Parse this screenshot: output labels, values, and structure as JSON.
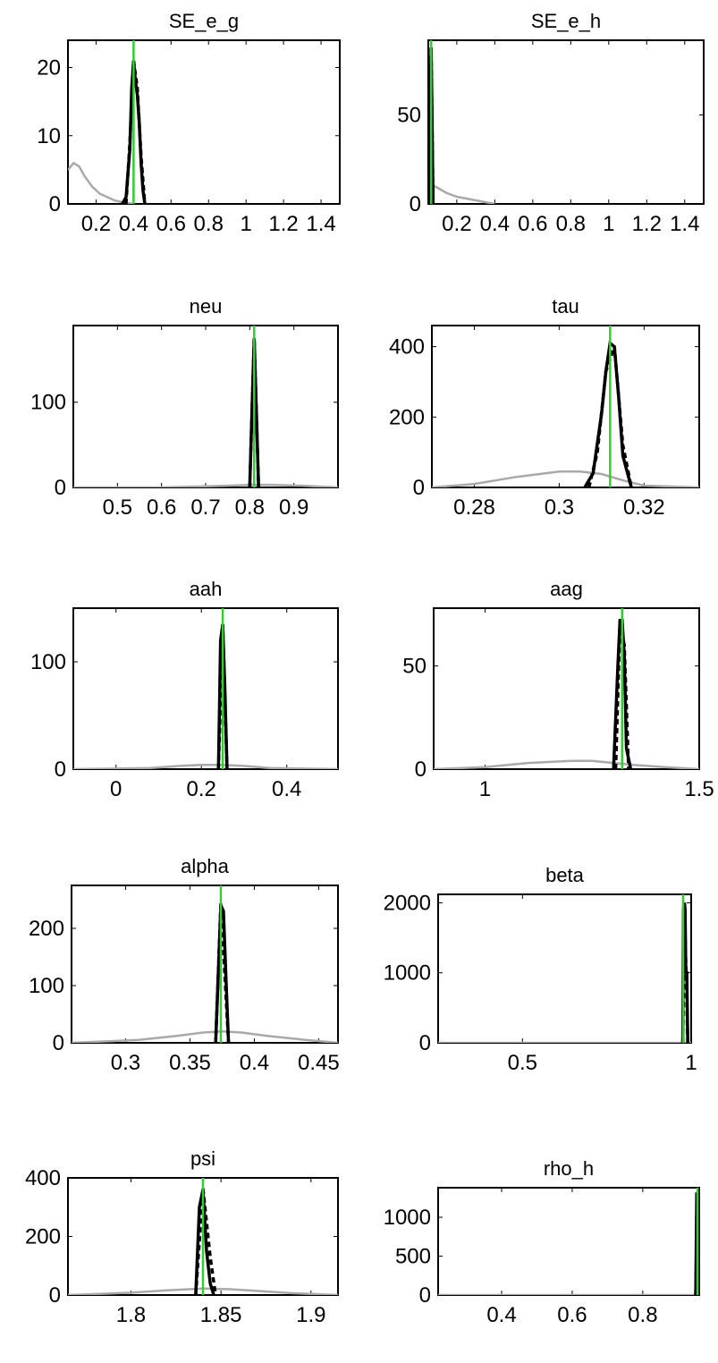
{
  "chart_data": [
    {
      "type": "line",
      "title": "SE_e_g",
      "xlim": [
        0.05,
        1.5
      ],
      "ylim": [
        0,
        24
      ],
      "xticks": [
        0.2,
        0.4,
        0.6,
        0.8,
        1,
        1.2,
        1.4
      ],
      "xtick_labels": [
        "0.2",
        "0.4",
        "0.6",
        "0.8",
        "1",
        "1.2",
        "1.4"
      ],
      "yticks": [
        0,
        10,
        20
      ],
      "ytick_labels": [
        "0",
        "10",
        "20"
      ],
      "prior": {
        "x": [
          0.05,
          0.08,
          0.11,
          0.14,
          0.18,
          0.22,
          0.26,
          0.3,
          0.35,
          0.4
        ],
        "y": [
          5,
          6,
          5.5,
          4,
          2.5,
          1.5,
          1,
          0.5,
          0.2,
          0
        ]
      },
      "posterior": {
        "x": [
          0.34,
          0.36,
          0.38,
          0.39,
          0.4,
          0.41,
          0.42,
          0.43,
          0.44,
          0.45,
          0.46
        ],
        "y": [
          0,
          1,
          8,
          17,
          21,
          18,
          16,
          12,
          6,
          2,
          0
        ]
      },
      "posterior_draws": {
        "x": [
          0.36,
          0.38,
          0.4,
          0.42,
          0.44,
          0.46
        ],
        "y": [
          0,
          9,
          21,
          17,
          7,
          0
        ]
      },
      "mode": 0.4,
      "mode_ylim": [
        0,
        24
      ]
    },
    {
      "type": "line",
      "title": "SE_e_h",
      "xlim": [
        0.05,
        1.5
      ],
      "ylim": [
        0,
        92
      ],
      "xticks": [
        0.2,
        0.4,
        0.6,
        0.8,
        1,
        1.2,
        1.4
      ],
      "xtick_labels": [
        "0.2",
        "0.4",
        "0.6",
        "0.8",
        "1",
        "1.2",
        "1.4"
      ],
      "yticks": [
        0,
        50
      ],
      "ytick_labels": [
        "0",
        "50"
      ],
      "prior": {
        "x": [
          0.05,
          0.1,
          0.15,
          0.2,
          0.25,
          0.3,
          0.35,
          0.4
        ],
        "y": [
          12,
          9,
          6,
          4,
          3,
          2,
          1,
          0
        ]
      },
      "posterior": {
        "x": [
          0.055,
          0.06,
          0.065,
          0.07,
          0.075
        ],
        "y": [
          0,
          60,
          88,
          50,
          0
        ]
      },
      "posterior_draws": {
        "x": [
          0.055,
          0.065,
          0.075
        ],
        "y": [
          0,
          88,
          0
        ]
      },
      "mode": 0.065,
      "mode_ylim": [
        0,
        92
      ]
    },
    {
      "type": "line",
      "title": "neu",
      "xlim": [
        0.4,
        1.0
      ],
      "ylim": [
        0,
        190
      ],
      "xticks": [
        0.5,
        0.6,
        0.7,
        0.8,
        0.9
      ],
      "xtick_labels": [
        "0.5",
        "0.6",
        "0.7",
        "0.8",
        "0.9"
      ],
      "yticks": [
        0,
        100
      ],
      "ytick_labels": [
        "0",
        "100"
      ],
      "prior": {
        "x": [
          0.4,
          0.6,
          0.75,
          0.8,
          0.85,
          0.92,
          1.0
        ],
        "y": [
          0,
          0,
          2,
          3,
          3,
          2,
          0
        ]
      },
      "posterior": {
        "x": [
          0.8,
          0.805,
          0.81,
          0.815,
          0.82
        ],
        "y": [
          0,
          90,
          175,
          90,
          0
        ]
      },
      "posterior_draws": {
        "x": [
          0.8,
          0.81,
          0.82
        ],
        "y": [
          0,
          175,
          0
        ]
      },
      "mode": 0.81,
      "mode_ylim": [
        0,
        190
      ]
    },
    {
      "type": "line",
      "title": "tau",
      "xlim": [
        0.27,
        0.333
      ],
      "ylim": [
        0,
        460
      ],
      "xticks": [
        0.28,
        0.3,
        0.32
      ],
      "xtick_labels": [
        "0.28",
        "0.3",
        "0.32"
      ],
      "yticks": [
        0,
        200,
        400
      ],
      "ytick_labels": [
        "0",
        "200",
        "400"
      ],
      "prior": {
        "x": [
          0.27,
          0.28,
          0.29,
          0.3,
          0.305,
          0.31,
          0.315,
          0.32,
          0.333
        ],
        "y": [
          0,
          10,
          30,
          45,
          45,
          38,
          20,
          5,
          0
        ]
      },
      "posterior": {
        "x": [
          0.306,
          0.308,
          0.31,
          0.311,
          0.312,
          0.313,
          0.314,
          0.315,
          0.317
        ],
        "y": [
          0,
          40,
          210,
          330,
          410,
          400,
          260,
          90,
          0
        ]
      },
      "posterior_draws": {
        "x": [
          0.307,
          0.309,
          0.311,
          0.313,
          0.315,
          0.317
        ],
        "y": [
          0,
          100,
          330,
          400,
          120,
          0
        ]
      },
      "mode": 0.312,
      "mode_ylim": [
        0,
        460
      ]
    },
    {
      "type": "line",
      "title": "aah",
      "xlim": [
        -0.1,
        0.52
      ],
      "ylim": [
        0,
        150
      ],
      "xticks": [
        0,
        0.2,
        0.4
      ],
      "xtick_labels": [
        "0",
        "0.2",
        "0.4"
      ],
      "yticks": [
        0,
        100
      ],
      "ytick_labels": [
        "0",
        "100"
      ],
      "prior": {
        "x": [
          -0.1,
          0.08,
          0.15,
          0.2,
          0.25,
          0.3,
          0.36,
          0.52
        ],
        "y": [
          0,
          1,
          3,
          4,
          4,
          3,
          1,
          0
        ]
      },
      "posterior": {
        "x": [
          0.24,
          0.245,
          0.25,
          0.255,
          0.26
        ],
        "y": [
          0,
          120,
          135,
          75,
          0
        ]
      },
      "posterior_draws": {
        "x": [
          0.24,
          0.25,
          0.26
        ],
        "y": [
          0,
          135,
          0
        ]
      },
      "mode": 0.25,
      "mode_ylim": [
        0,
        150
      ]
    },
    {
      "type": "line",
      "title": "aag",
      "xlim": [
        0.88,
        1.5
      ],
      "ylim": [
        0,
        78
      ],
      "xticks": [
        1,
        1.5
      ],
      "xtick_labels": [
        "1",
        "1.5"
      ],
      "yticks": [
        0,
        50
      ],
      "ytick_labels": [
        "0",
        "50"
      ],
      "prior": {
        "x": [
          0.88,
          1.0,
          1.1,
          1.2,
          1.25,
          1.3,
          1.35,
          1.42,
          1.5
        ],
        "y": [
          0,
          1,
          3,
          4,
          4,
          3,
          2,
          1,
          0
        ]
      },
      "posterior": {
        "x": [
          1.3,
          1.31,
          1.315,
          1.32,
          1.325,
          1.33,
          1.34
        ],
        "y": [
          0,
          50,
          72,
          72,
          55,
          10,
          0
        ]
      },
      "posterior_draws": {
        "x": [
          1.305,
          1.315,
          1.325,
          1.335
        ],
        "y": [
          0,
          72,
          60,
          0
        ]
      },
      "mode": 1.32,
      "mode_ylim": [
        0,
        78
      ]
    },
    {
      "type": "line",
      "title": "alpha",
      "xlim": [
        0.258,
        0.465
      ],
      "ylim": [
        0,
        275
      ],
      "xticks": [
        0.3,
        0.35,
        0.4,
        0.45
      ],
      "xtick_labels": [
        "0.3",
        "0.35",
        "0.4",
        "0.45"
      ],
      "yticks": [
        0,
        100,
        200
      ],
      "ytick_labels": [
        "0",
        "100",
        "200"
      ],
      "prior": {
        "x": [
          0.258,
          0.31,
          0.34,
          0.36,
          0.375,
          0.39,
          0.41,
          0.44,
          0.465
        ],
        "y": [
          0,
          5,
          12,
          18,
          20,
          18,
          12,
          5,
          0
        ]
      },
      "posterior": {
        "x": [
          0.37,
          0.372,
          0.374,
          0.376,
          0.378,
          0.38
        ],
        "y": [
          0,
          120,
          240,
          230,
          110,
          0
        ]
      },
      "posterior_draws": {
        "x": [
          0.37,
          0.374,
          0.38
        ],
        "y": [
          0,
          245,
          0
        ]
      },
      "mode": 0.374,
      "mode_ylim": [
        0,
        275
      ]
    },
    {
      "type": "line",
      "title": "beta",
      "xlim": [
        0.25,
        1.0
      ],
      "ylim": [
        0,
        2120
      ],
      "xticks": [
        0.5,
        1
      ],
      "xtick_labels": [
        "0.5",
        "1"
      ],
      "yticks": [
        0,
        1000,
        2000
      ],
      "ytick_labels": [
        "0",
        "1000",
        "2000"
      ],
      "prior": {
        "x": [
          0.25,
          1.0
        ],
        "y": [
          0,
          0
        ]
      },
      "posterior": {
        "x": [
          0.975,
          0.977,
          0.98,
          0.982,
          0.984,
          0.987,
          0.99
        ],
        "y": [
          0,
          1900,
          2000,
          1900,
          1000,
          1000,
          0
        ]
      },
      "posterior_draws": {
        "x": [
          0.975,
          0.98,
          0.985,
          0.99
        ],
        "y": [
          0,
          1950,
          1000,
          0
        ]
      },
      "mode": 0.976,
      "mode_ylim": [
        0,
        2120
      ]
    },
    {
      "type": "line",
      "title": "psi",
      "xlim": [
        1.765,
        1.915
      ],
      "ylim": [
        0,
        400
      ],
      "xticks": [
        1.8,
        1.85,
        1.9
      ],
      "xtick_labels": [
        "1.8",
        "1.85",
        "1.9"
      ],
      "yticks": [
        0,
        200,
        400
      ],
      "ytick_labels": [
        "0",
        "200",
        "400"
      ],
      "prior": {
        "x": [
          1.765,
          1.8,
          1.82,
          1.84,
          1.855,
          1.87,
          1.89,
          1.915
        ],
        "y": [
          0,
          8,
          16,
          22,
          20,
          14,
          6,
          0
        ]
      },
      "posterior": {
        "x": [
          1.836,
          1.838,
          1.84,
          1.842,
          1.844,
          1.846
        ],
        "y": [
          0,
          300,
          360,
          150,
          40,
          0
        ]
      },
      "posterior_draws": {
        "x": [
          1.836,
          1.84,
          1.844,
          1.847
        ],
        "y": [
          0,
          365,
          130,
          0
        ]
      },
      "mode": 1.84,
      "mode_ylim": [
        0,
        400
      ]
    },
    {
      "type": "line",
      "title": "rho_h",
      "xlim": [
        0.22,
        0.96
      ],
      "ylim": [
        0,
        1380
      ],
      "xticks": [
        0.4,
        0.6,
        0.8
      ],
      "xtick_labels": [
        "0.4",
        "0.6",
        "0.8"
      ],
      "yticks": [
        0,
        500,
        1000
      ],
      "ytick_labels": [
        "0",
        "500",
        "1000"
      ],
      "prior": {
        "x": [
          0.22,
          0.96
        ],
        "y": [
          0,
          0
        ]
      },
      "posterior": {
        "x": [
          0.95,
          0.953,
          0.956,
          0.959
        ],
        "y": [
          0,
          1300,
          1300,
          0
        ]
      },
      "posterior_draws": {
        "x": [
          0.95,
          0.955,
          0.959
        ],
        "y": [
          0,
          1300,
          0
        ]
      },
      "mode": 0.955,
      "mode_ylim": [
        0,
        1380
      ]
    }
  ]
}
